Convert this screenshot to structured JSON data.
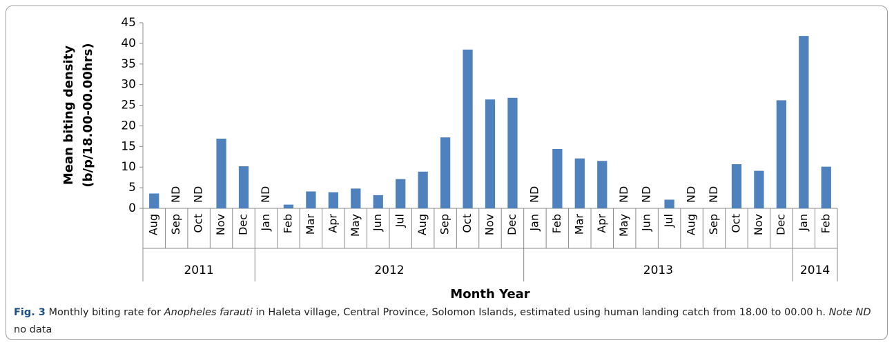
{
  "chart_data": {
    "type": "bar",
    "ylabel": [
      "Mean biting density",
      "(b/p/18.00-00.00hrs)"
    ],
    "xlabel": "Month Year",
    "color": "#4f81bd",
    "ylim": [
      0,
      45
    ],
    "yticks": [
      0,
      5,
      10,
      15,
      20,
      25,
      30,
      35,
      40,
      45
    ],
    "groups": [
      {
        "label": "2011",
        "categories": [
          "Aug",
          "Sep",
          "Oct",
          "Nov",
          "Dec"
        ],
        "values": [
          3.6,
          null,
          null,
          16.9,
          10.2
        ],
        "value_labels": [
          null,
          "ND",
          "ND",
          null,
          null
        ]
      },
      {
        "label": "2012",
        "categories": [
          "Jan",
          "Feb",
          "Mar",
          "Apr",
          "May",
          "Jun",
          "Jul",
          "Aug",
          "Sep",
          "Oct",
          "Nov",
          "Dec"
        ],
        "values": [
          null,
          0.9,
          4.1,
          3.9,
          4.8,
          3.2,
          7.1,
          8.9,
          17.2,
          38.5,
          26.4,
          26.8
        ],
        "value_labels": [
          "ND",
          null,
          null,
          null,
          null,
          null,
          null,
          null,
          null,
          null,
          null,
          null
        ]
      },
      {
        "label": "2013",
        "categories": [
          "Jan",
          "Feb",
          "Mar",
          "Apr",
          "May",
          "Jun",
          "Jul",
          "Aug",
          "Sep",
          "Oct",
          "Nov",
          "Dec"
        ],
        "values": [
          null,
          14.4,
          12.1,
          11.5,
          null,
          null,
          2.1,
          null,
          null,
          10.7,
          9.1,
          26.2
        ],
        "value_labels": [
          "ND",
          null,
          null,
          null,
          "ND",
          "ND",
          null,
          "ND",
          "ND",
          null,
          null,
          null
        ]
      },
      {
        "label": "2014",
        "categories": [
          "Jan",
          "Feb"
        ],
        "values": [
          41.8,
          10.1
        ],
        "value_labels": [
          null,
          null
        ]
      }
    ]
  },
  "caption": [
    "Fig. 3",
    " Monthly biting rate for ",
    "Anopheles farauti",
    " in Haleta village, Central Province, Solomon Islands, estimated using human landing catch from 18.00 to 00.00 h. ",
    "Note ND",
    " no data"
  ]
}
